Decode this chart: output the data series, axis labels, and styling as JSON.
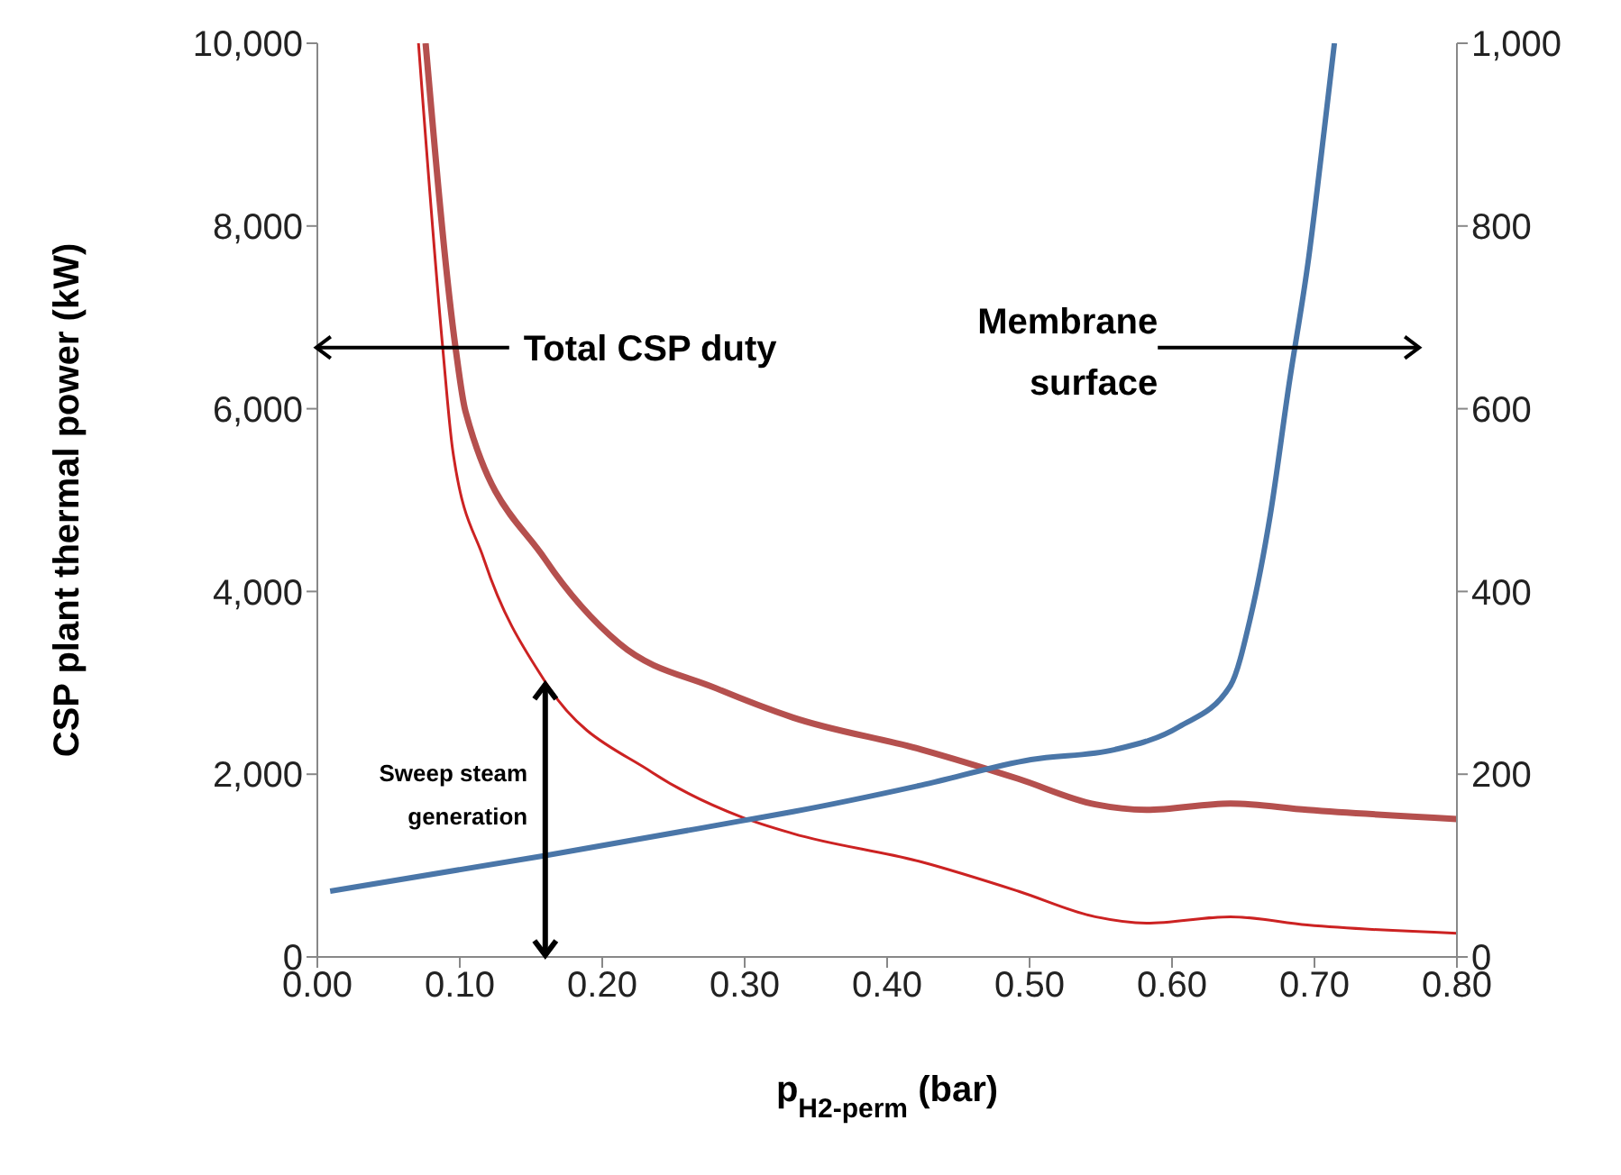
{
  "chart_data": {
    "type": "line",
    "xlabel": "p$_{H2-perm}$ (bar)",
    "ylabel": "CSP plant thermal power (kW)",
    "xlim": [
      0,
      0.8
    ],
    "xticks": [
      {
        "value": 0,
        "label": "0.00"
      },
      {
        "value": 0.1,
        "label": "0.10"
      },
      {
        "value": 0.2,
        "label": "0.20"
      },
      {
        "value": 0.3,
        "label": "0.30"
      },
      {
        "value": 0.4,
        "label": "0.40"
      },
      {
        "value": 0.5,
        "label": "0.50"
      },
      {
        "value": 0.6,
        "label": "0.60"
      },
      {
        "value": 0.7,
        "label": "0.70"
      },
      {
        "value": 0.8,
        "label": "0.80"
      }
    ],
    "ylim": [
      0,
      10000
    ],
    "yticks": [
      0,
      {
        "value": 2000,
        "label": "2,000"
      },
      {
        "value": 4000,
        "label": "4,000"
      },
      {
        "value": 6000,
        "label": "6,000"
      },
      {
        "value": 8000,
        "label": "8,000"
      },
      {
        "value": 10000,
        "label": "10,000"
      }
    ],
    "y2lim": [
      0,
      1000
    ],
    "y2ticks": [
      0,
      200,
      400,
      600,
      800,
      {
        "value": 1000,
        "label": "1,000"
      }
    ],
    "marker": "none",
    "line_style": "solid",
    "series": [
      {
        "color": "#b5504e",
        "x": [
          0.076,
          0.097,
          0.104,
          0.16,
          0.212,
          0.28,
          0.334,
          0.424,
          0.492,
          0.546,
          0.582,
          0.641,
          0.695,
          0.8
        ],
        "values": [
          10000,
          6670,
          5970,
          4350,
          3430,
          2940,
          2620,
          2270,
          1950,
          1670,
          1610,
          1680,
          1610,
          1510
        ]
      },
      {
        "color": "#cc2222",
        "x": [
          0.071,
          0.088,
          0.095,
          0.117,
          0.16,
          0.235,
          0.298,
          0.334,
          0.424,
          0.492,
          0.546,
          0.582,
          0.641,
          0.695,
          0.8
        ],
        "values": [
          10000,
          6670,
          5550,
          4350,
          3010,
          2020,
          1530,
          1350,
          1040,
          720,
          440,
          370,
          440,
          350,
          260
        ]
      },
      {
        "color": "#4a76a8",
        "axis": "y2",
        "x": [
          0.009,
          0.16,
          0.298,
          0.334,
          0.424,
          0.501,
          0.56,
          0.605,
          0.641,
          0.655,
          0.669,
          0.682,
          0.696,
          0.707,
          0.714
        ],
        "values": [
          72,
          111,
          149,
          159,
          188,
          216,
          227,
          252,
          297,
          371,
          484,
          625,
          766,
          907,
          1000
        ]
      }
    ],
    "annotations": [
      "Total CSP duty",
      "Membrane surface",
      "Sweep steam generation"
    ]
  }
}
